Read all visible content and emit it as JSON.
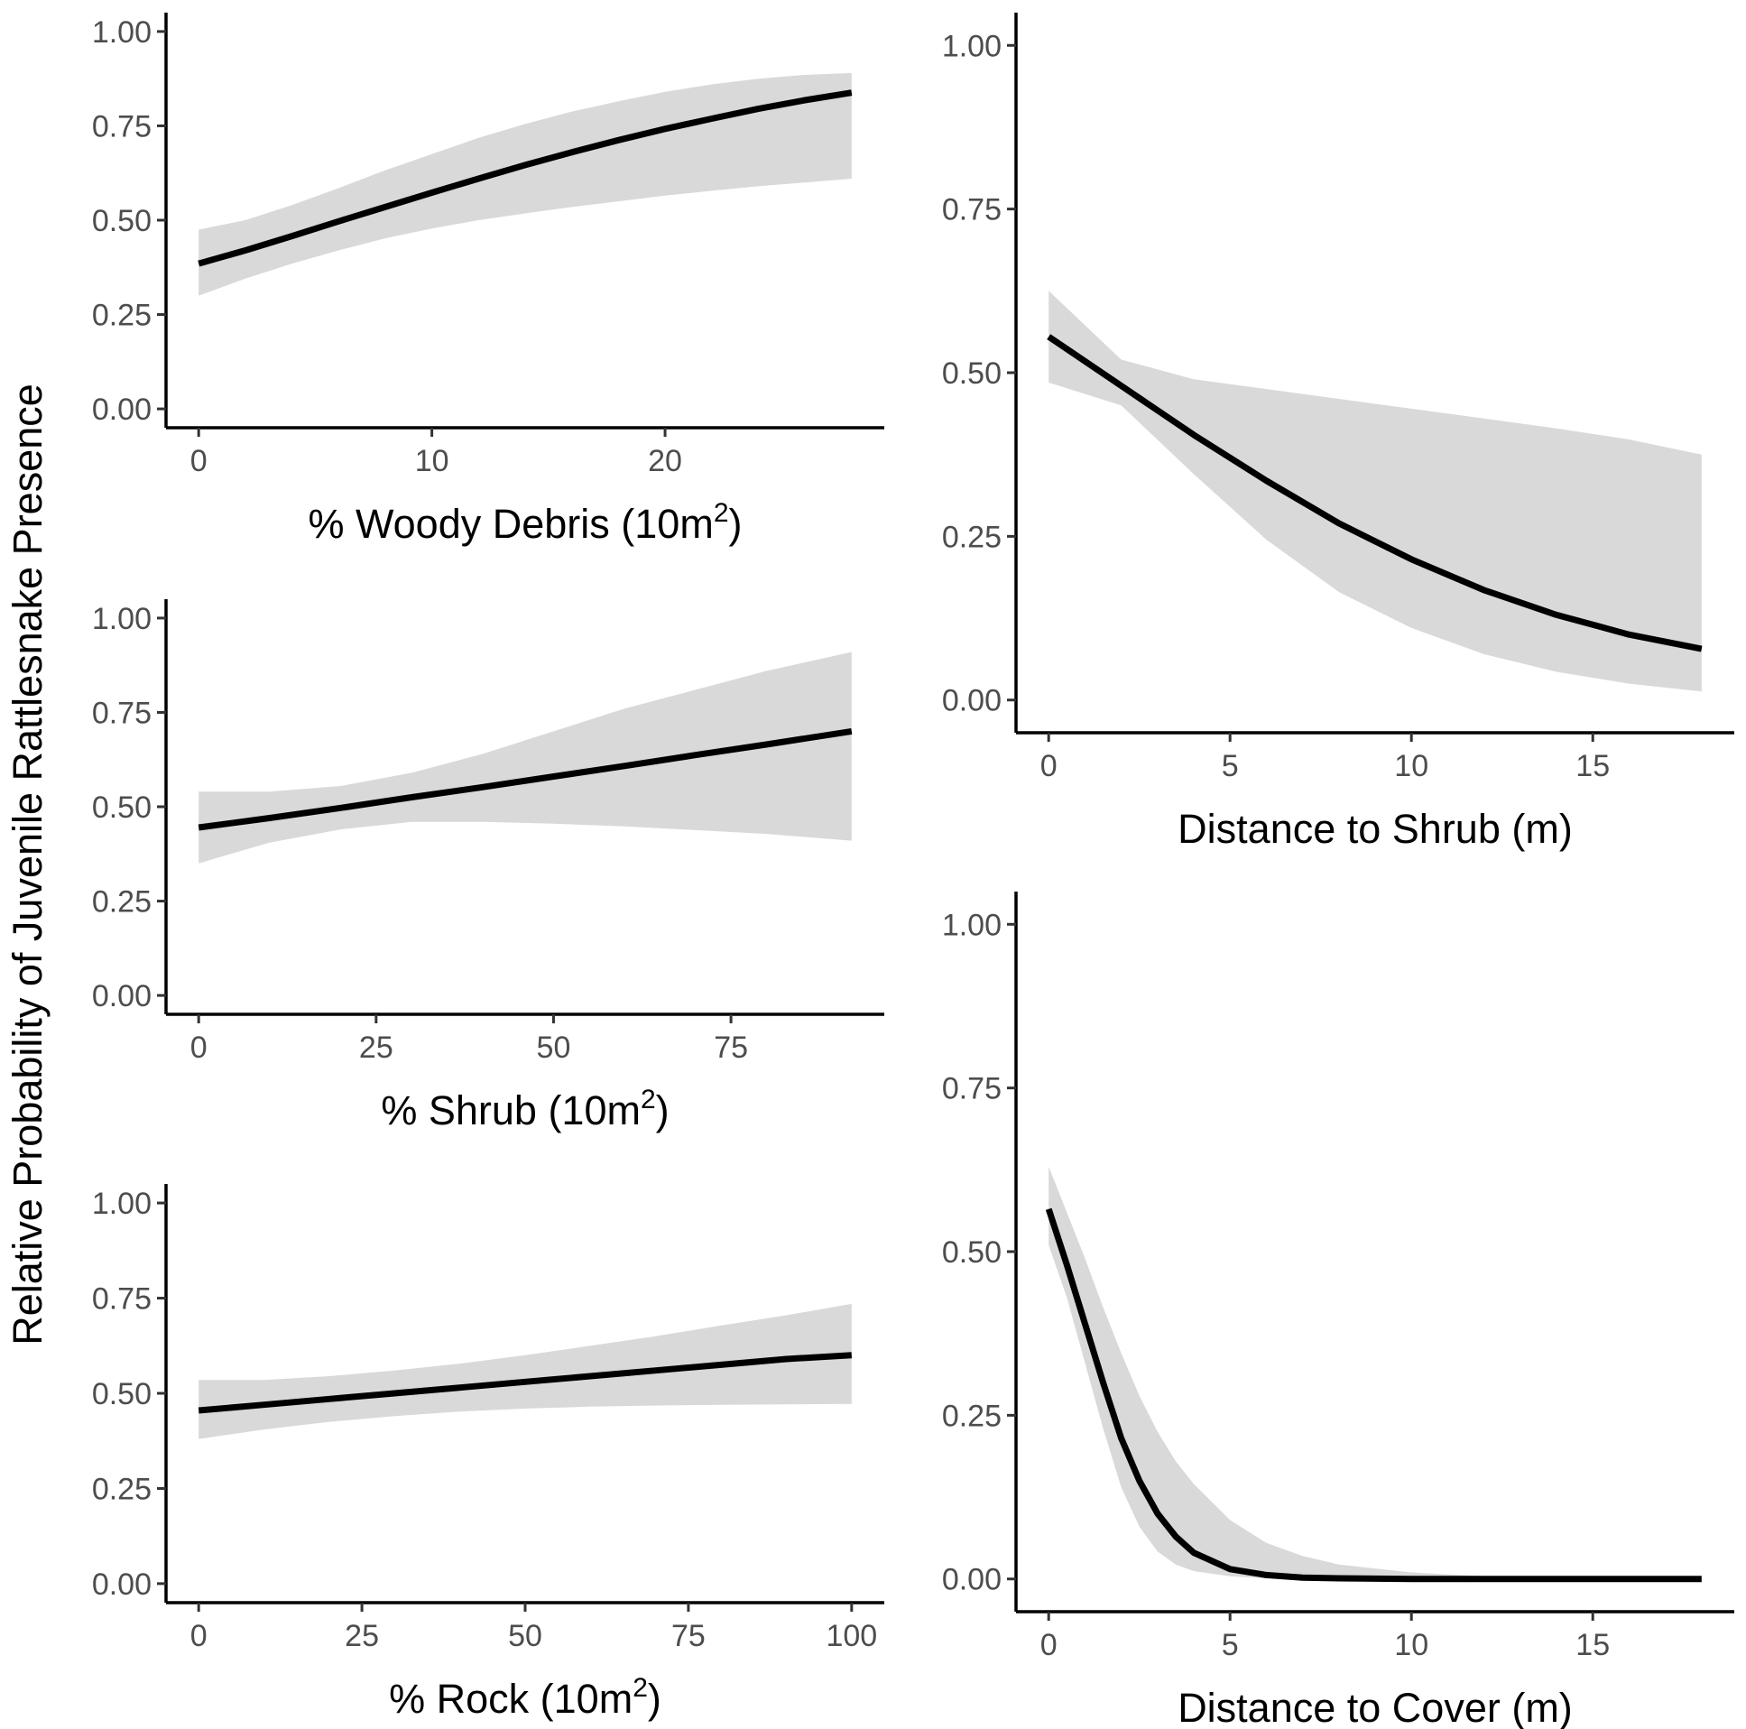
{
  "shared_ylabel": "Relative Probability of Juvenile Rattlesnake Presence",
  "colors": {
    "band": "#d9d9d9",
    "line": "#000000",
    "ticks": "#4d4d4d"
  },
  "chart_data": [
    {
      "id": "woody",
      "type": "line",
      "title": "",
      "xlabel": "% Woody Debris (10m",
      "xlabel_sup": "2",
      "xlabel_end": ")",
      "ylabel": "Relative Probability of Juvenile Rattlesnake Presence",
      "xlim": [
        -1.4,
        29.4
      ],
      "ylim": [
        -0.05,
        1.05
      ],
      "xticks": [
        0,
        10,
        20
      ],
      "xtick_labels": [
        "0",
        "10",
        "20"
      ],
      "yticks": [
        0,
        0.25,
        0.5,
        0.75,
        1.0
      ],
      "ytick_labels": [
        "0.00",
        "0.25",
        "0.50",
        "0.75",
        "1.00"
      ],
      "series": [
        {
          "name": "fit",
          "x": [
            0,
            2,
            4,
            6,
            8,
            10,
            12,
            14,
            16,
            18,
            20,
            22,
            24,
            26,
            28
          ],
          "y": [
            0.385,
            0.42,
            0.458,
            0.497,
            0.535,
            0.573,
            0.61,
            0.646,
            0.68,
            0.712,
            0.742,
            0.769,
            0.795,
            0.818,
            0.838
          ],
          "lower": [
            0.3,
            0.345,
            0.385,
            0.42,
            0.452,
            0.478,
            0.5,
            0.518,
            0.535,
            0.55,
            0.565,
            0.578,
            0.59,
            0.6,
            0.61
          ],
          "upper": [
            0.475,
            0.5,
            0.54,
            0.585,
            0.632,
            0.675,
            0.718,
            0.755,
            0.788,
            0.815,
            0.84,
            0.86,
            0.875,
            0.885,
            0.89
          ]
        }
      ]
    },
    {
      "id": "shrub",
      "type": "line",
      "title": "",
      "xlabel": "% Shrub (10m",
      "xlabel_sup": "2",
      "xlabel_end": ")",
      "ylabel": "Relative Probability of Juvenile Rattlesnake Presence",
      "xlim": [
        -4.6,
        96.6
      ],
      "ylim": [
        -0.05,
        1.05
      ],
      "xticks": [
        0,
        25,
        50,
        75
      ],
      "xtick_labels": [
        "0",
        "25",
        "50",
        "75"
      ],
      "yticks": [
        0,
        0.25,
        0.5,
        0.75,
        1.0
      ],
      "ytick_labels": [
        "0.00",
        "0.25",
        "0.50",
        "0.75",
        "1.00"
      ],
      "series": [
        {
          "name": "fit",
          "x": [
            0,
            10,
            20,
            30,
            40,
            50,
            60,
            70,
            80,
            92
          ],
          "y": [
            0.445,
            0.47,
            0.497,
            0.525,
            0.552,
            0.58,
            0.608,
            0.637,
            0.665,
            0.7
          ],
          "lower": [
            0.35,
            0.405,
            0.44,
            0.46,
            0.46,
            0.455,
            0.448,
            0.438,
            0.428,
            0.41
          ],
          "upper": [
            0.54,
            0.54,
            0.555,
            0.59,
            0.64,
            0.7,
            0.76,
            0.81,
            0.86,
            0.91
          ]
        }
      ]
    },
    {
      "id": "rock",
      "type": "line",
      "title": "",
      "xlabel": "% Rock (10m",
      "xlabel_sup": "2",
      "xlabel_end": ")",
      "ylabel": "Relative Probability of Juvenile Rattlesnake Presence",
      "xlim": [
        -5,
        105
      ],
      "ylim": [
        -0.05,
        1.05
      ],
      "xticks": [
        0,
        25,
        50,
        75,
        100
      ],
      "xtick_labels": [
        "0",
        "25",
        "50",
        "75",
        "100"
      ],
      "yticks": [
        0,
        0.25,
        0.5,
        0.75,
        1.0
      ],
      "ytick_labels": [
        "0.00",
        "0.25",
        "0.50",
        "0.75",
        "1.00"
      ],
      "series": [
        {
          "name": "fit",
          "x": [
            0,
            10,
            20,
            30,
            40,
            50,
            60,
            70,
            80,
            90,
            100
          ],
          "y": [
            0.455,
            0.47,
            0.485,
            0.5,
            0.515,
            0.53,
            0.545,
            0.56,
            0.575,
            0.59,
            0.6
          ],
          "lower": [
            0.38,
            0.405,
            0.425,
            0.44,
            0.452,
            0.46,
            0.465,
            0.468,
            0.47,
            0.471,
            0.472
          ],
          "upper": [
            0.535,
            0.535,
            0.545,
            0.56,
            0.578,
            0.6,
            0.625,
            0.65,
            0.678,
            0.705,
            0.735
          ]
        }
      ]
    },
    {
      "id": "dist_shrub",
      "type": "line",
      "title": "",
      "xlabel": "Distance to Shrub (m)",
      "xlabel_sup": "",
      "xlabel_end": "",
      "ylabel": "",
      "xlim": [
        -0.9,
        18.9
      ],
      "ylim": [
        -0.05,
        1.05
      ],
      "xticks": [
        0,
        5,
        10,
        15
      ],
      "xtick_labels": [
        "0",
        "5",
        "10",
        "15"
      ],
      "yticks": [
        0,
        0.25,
        0.5,
        0.75,
        1.0
      ],
      "ytick_labels": [
        "0.00",
        "0.25",
        "0.50",
        "0.75",
        "1.00"
      ],
      "series": [
        {
          "name": "fit",
          "x": [
            0,
            2,
            4,
            6,
            8,
            10,
            12,
            14,
            16,
            18
          ],
          "y": [
            0.555,
            0.48,
            0.405,
            0.335,
            0.27,
            0.215,
            0.168,
            0.13,
            0.1,
            0.078
          ],
          "lower": [
            0.485,
            0.45,
            0.345,
            0.245,
            0.165,
            0.11,
            0.07,
            0.043,
            0.025,
            0.013
          ],
          "upper": [
            0.625,
            0.52,
            0.49,
            0.475,
            0.46,
            0.445,
            0.43,
            0.415,
            0.398,
            0.375
          ]
        }
      ]
    },
    {
      "id": "dist_cover",
      "type": "line",
      "title": "",
      "xlabel": "Distance to Cover (m)",
      "xlabel_sup": "",
      "xlabel_end": "",
      "ylabel": "",
      "xlim": [
        -0.9,
        18.9
      ],
      "ylim": [
        -0.05,
        1.05
      ],
      "xticks": [
        0,
        5,
        10,
        15
      ],
      "xtick_labels": [
        "0",
        "5",
        "10",
        "15"
      ],
      "yticks": [
        0,
        0.25,
        0.5,
        0.75,
        1.0
      ],
      "ytick_labels": [
        "0.00",
        "0.25",
        "0.50",
        "0.75",
        "1.00"
      ],
      "series": [
        {
          "name": "fit",
          "x": [
            0,
            0.5,
            1,
            1.5,
            2,
            2.5,
            3,
            3.5,
            4,
            5,
            6,
            7,
            8,
            10,
            12,
            14,
            16,
            18
          ],
          "y": [
            0.565,
            0.48,
            0.39,
            0.3,
            0.215,
            0.15,
            0.1,
            0.065,
            0.04,
            0.015,
            0.006,
            0.002,
            0.001,
            0,
            0,
            0,
            0,
            0
          ],
          "lower": [
            0.51,
            0.43,
            0.33,
            0.23,
            0.14,
            0.08,
            0.042,
            0.022,
            0.012,
            0.004,
            0.001,
            0,
            0,
            0,
            0,
            0,
            0,
            0
          ],
          "upper": [
            0.63,
            0.56,
            0.49,
            0.415,
            0.345,
            0.28,
            0.225,
            0.18,
            0.145,
            0.09,
            0.055,
            0.035,
            0.022,
            0.01,
            0.004,
            0.002,
            0.001,
            0.001
          ]
        }
      ]
    }
  ]
}
